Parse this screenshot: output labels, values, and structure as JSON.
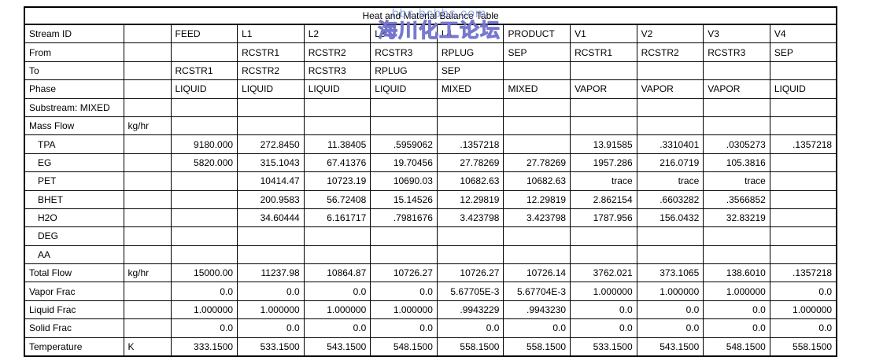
{
  "watermark": {
    "line1": "bbs.hcbbs.com",
    "line2": "海川化工论坛",
    "line1_color": "#7891E6",
    "line2_color": "#6969C8"
  },
  "table": {
    "title": "Heat and Material Balance Table",
    "stream_columns": [
      "FEED",
      "L1",
      "L2",
      "L3",
      "L4",
      "PRODUCT",
      "V1",
      "V2",
      "V3",
      "V4"
    ],
    "rows": [
      {
        "label": "Stream ID",
        "unit": "",
        "indent": false,
        "value_align": "left",
        "values": [
          "FEED",
          "L1",
          "L2",
          "L3",
          "L4",
          "PRODUCT",
          "V1",
          "V2",
          "V3",
          "V4"
        ]
      },
      {
        "label": "From",
        "unit": "",
        "indent": false,
        "value_align": "left",
        "values": [
          "",
          "RCSTR1",
          "RCSTR2",
          "RCSTR3",
          "RPLUG",
          "SEP",
          "RCSTR1",
          "RCSTR2",
          "RCSTR3",
          "SEP"
        ]
      },
      {
        "label": "To",
        "unit": "",
        "indent": false,
        "value_align": "left",
        "values": [
          "RCSTR1",
          "RCSTR2",
          "RCSTR3",
          "RPLUG",
          "SEP",
          "",
          "",
          "",
          "",
          ""
        ]
      },
      {
        "label": "Phase",
        "unit": "",
        "indent": false,
        "value_align": "left",
        "values": [
          "LIQUID",
          "LIQUID",
          "LIQUID",
          "LIQUID",
          "MIXED",
          "MIXED",
          "VAPOR",
          "VAPOR",
          "VAPOR",
          "LIQUID"
        ]
      },
      {
        "label": "Substream: MIXED",
        "unit": "",
        "indent": false,
        "value_align": "left",
        "values": [
          "",
          "",
          "",
          "",
          "",
          "",
          "",
          "",
          "",
          ""
        ]
      },
      {
        "label": "Mass Flow",
        "unit": "kg/hr",
        "indent": false,
        "value_align": "right",
        "values": [
          "",
          "",
          "",
          "",
          "",
          "",
          "",
          "",
          "",
          ""
        ]
      },
      {
        "label": "TPA",
        "unit": "",
        "indent": true,
        "value_align": "right",
        "values": [
          "9180.000",
          "272.8450",
          "11.38405",
          ".5959062",
          ".1357218",
          "",
          "13.91585",
          ".3310401",
          ".0305273",
          ".1357218"
        ]
      },
      {
        "label": "EG",
        "unit": "",
        "indent": true,
        "value_align": "right",
        "values": [
          "5820.000",
          "315.1043",
          "67.41376",
          "19.70456",
          "27.78269",
          "27.78269",
          "1957.286",
          "216.0719",
          "105.3816",
          ""
        ]
      },
      {
        "label": "PET",
        "unit": "",
        "indent": true,
        "value_align": "right",
        "values": [
          "",
          "10414.47",
          "10723.19",
          "10690.03",
          "10682.63",
          "10682.63",
          "trace",
          "trace",
          "trace",
          ""
        ]
      },
      {
        "label": "BHET",
        "unit": "",
        "indent": true,
        "value_align": "right",
        "values": [
          "",
          "200.9583",
          "56.72408",
          "15.14526",
          "12.29819",
          "12.29819",
          "2.862154",
          ".6603282",
          ".3566852",
          ""
        ]
      },
      {
        "label": "H2O",
        "unit": "",
        "indent": true,
        "value_align": "right",
        "values": [
          "",
          "34.60444",
          "6.161717",
          ".7981676",
          "3.423798",
          "3.423798",
          "1787.956",
          "156.0432",
          "32.83219",
          ""
        ]
      },
      {
        "label": "DEG",
        "unit": "",
        "indent": true,
        "value_align": "right",
        "values": [
          "",
          "",
          "",
          "",
          "",
          "",
          "",
          "",
          "",
          ""
        ]
      },
      {
        "label": "AA",
        "unit": "",
        "indent": true,
        "value_align": "right",
        "values": [
          "",
          "",
          "",
          "",
          "",
          "",
          "",
          "",
          "",
          ""
        ]
      },
      {
        "label": "Total Flow",
        "unit": "kg/hr",
        "indent": false,
        "value_align": "right",
        "values": [
          "15000.00",
          "11237.98",
          "10864.87",
          "10726.27",
          "10726.27",
          "10726.14",
          "3762.021",
          "373.1065",
          "138.6010",
          ".1357218"
        ]
      },
      {
        "label": "Vapor Frac",
        "unit": "",
        "indent": false,
        "value_align": "right",
        "values": [
          "0.0",
          "0.0",
          "0.0",
          "0.0",
          "5.67705E-3",
          "5.67704E-3",
          "1.000000",
          "1.000000",
          "1.000000",
          "0.0"
        ]
      },
      {
        "label": "Liquid Frac",
        "unit": "",
        "indent": false,
        "value_align": "right",
        "values": [
          "1.000000",
          "1.000000",
          "1.000000",
          "1.000000",
          ".9943229",
          ".9943230",
          "0.0",
          "0.0",
          "0.0",
          "1.000000"
        ]
      },
      {
        "label": "Solid Frac",
        "unit": "",
        "indent": false,
        "value_align": "right",
        "values": [
          "0.0",
          "0.0",
          "0.0",
          "0.0",
          "0.0",
          "0.0",
          "0.0",
          "0.0",
          "0.0",
          "0.0"
        ]
      },
      {
        "label": "Temperature",
        "unit": "K",
        "indent": false,
        "value_align": "right",
        "values": [
          "333.1500",
          "533.1500",
          "543.1500",
          "548.1500",
          "558.1500",
          "558.1500",
          "533.1500",
          "543.1500",
          "548.1500",
          "558.1500"
        ]
      }
    ]
  }
}
